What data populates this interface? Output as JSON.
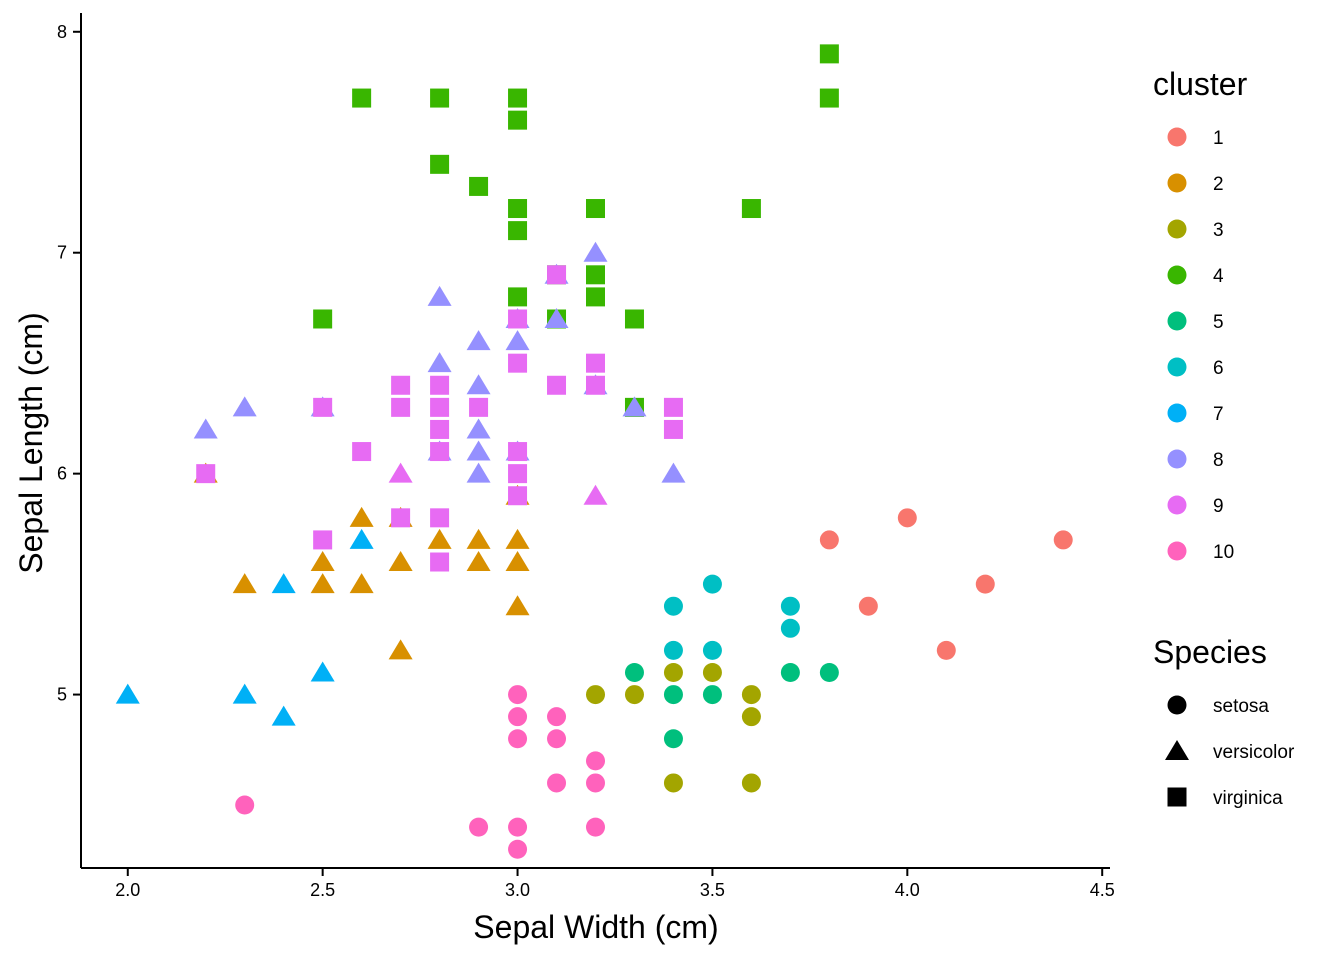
{
  "chart_data": {
    "type": "scatter",
    "title": "",
    "xlabel": "Sepal Width (cm)",
    "ylabel": "Sepal Length (cm)",
    "xlim": [
      1.88,
      4.52
    ],
    "ylim": [
      4.215,
      8.085
    ],
    "xticks": [
      2.0,
      2.5,
      3.0,
      3.5,
      4.0,
      4.5
    ],
    "xtick_labels": [
      "2.0",
      "2.5",
      "3.0",
      "3.5",
      "4.0",
      "4.5"
    ],
    "yticks": [
      5,
      6,
      7,
      8
    ],
    "ytick_labels": [
      "5",
      "6",
      "7",
      "8"
    ],
    "grid": false,
    "legend_position": "right",
    "color_legend": {
      "title": "cluster",
      "entries": [
        {
          "label": "1",
          "color": "#F8766D"
        },
        {
          "label": "2",
          "color": "#D89000"
        },
        {
          "label": "3",
          "color": "#A3A500"
        },
        {
          "label": "4",
          "color": "#39B600"
        },
        {
          "label": "5",
          "color": "#00BF7D"
        },
        {
          "label": "6",
          "color": "#00BFC4"
        },
        {
          "label": "7",
          "color": "#00B0F6"
        },
        {
          "label": "8",
          "color": "#9590FF"
        },
        {
          "label": "9",
          "color": "#E76BF3"
        },
        {
          "label": "10",
          "color": "#FF62BC"
        }
      ]
    },
    "shape_legend": {
      "title": "Species",
      "entries": [
        {
          "label": "setosa",
          "shape": "circle"
        },
        {
          "label": "versicolor",
          "shape": "triangle"
        },
        {
          "label": "virginica",
          "shape": "square"
        }
      ]
    },
    "series": [
      {
        "name": "cluster 1 / setosa",
        "cluster": "1",
        "species": "setosa",
        "points": [
          [
            3.8,
            5.7
          ],
          [
            4.0,
            5.8
          ],
          [
            4.4,
            5.7
          ],
          [
            4.2,
            5.5
          ],
          [
            3.9,
            5.4
          ],
          [
            4.1,
            5.2
          ]
        ]
      },
      {
        "name": "cluster 2 / versicolor",
        "cluster": "2",
        "species": "versicolor",
        "points": [
          [
            2.2,
            6.0
          ],
          [
            2.3,
            5.5
          ],
          [
            2.5,
            5.6
          ],
          [
            2.5,
            5.5
          ],
          [
            2.6,
            5.8
          ],
          [
            2.6,
            5.5
          ],
          [
            2.7,
            5.8
          ],
          [
            2.7,
            5.6
          ],
          [
            2.7,
            5.2
          ],
          [
            2.8,
            5.7
          ],
          [
            2.9,
            5.7
          ],
          [
            2.9,
            5.6
          ],
          [
            3.0,
            5.7
          ],
          [
            3.0,
            5.6
          ],
          [
            3.0,
            5.4
          ],
          [
            3.0,
            5.9
          ]
        ]
      },
      {
        "name": "cluster 3 / setosa",
        "cluster": "3",
        "species": "setosa",
        "points": [
          [
            3.2,
            5.0
          ],
          [
            3.3,
            5.0
          ],
          [
            3.4,
            5.1
          ],
          [
            3.5,
            5.1
          ],
          [
            3.6,
            5.0
          ],
          [
            3.6,
            4.9
          ],
          [
            3.4,
            4.6
          ],
          [
            3.6,
            4.6
          ]
        ]
      },
      {
        "name": "cluster 4 / virginica",
        "cluster": "4",
        "species": "virginica",
        "points": [
          [
            2.6,
            7.7
          ],
          [
            2.8,
            7.7
          ],
          [
            3.0,
            7.7
          ],
          [
            3.0,
            7.6
          ],
          [
            2.8,
            7.4
          ],
          [
            2.9,
            7.3
          ],
          [
            3.0,
            7.2
          ],
          [
            3.0,
            7.1
          ],
          [
            3.2,
            7.2
          ],
          [
            3.6,
            7.2
          ],
          [
            3.8,
            7.9
          ],
          [
            3.8,
            7.7
          ],
          [
            3.2,
            6.9
          ],
          [
            3.1,
            6.9
          ],
          [
            3.2,
            6.8
          ],
          [
            3.0,
            6.8
          ],
          [
            2.5,
            6.7
          ],
          [
            3.1,
            6.7
          ],
          [
            3.3,
            6.7
          ],
          [
            3.3,
            6.3
          ]
        ]
      },
      {
        "name": "cluster 5 / setosa",
        "cluster": "5",
        "species": "setosa",
        "points": [
          [
            3.3,
            5.1
          ],
          [
            3.4,
            5.0
          ],
          [
            3.5,
            5.0
          ],
          [
            3.7,
            5.1
          ],
          [
            3.8,
            5.1
          ],
          [
            3.4,
            4.8
          ]
        ]
      },
      {
        "name": "cluster 6 / setosa",
        "cluster": "6",
        "species": "setosa",
        "points": [
          [
            3.4,
            5.4
          ],
          [
            3.5,
            5.5
          ],
          [
            3.4,
            5.2
          ],
          [
            3.5,
            5.2
          ],
          [
            3.7,
            5.4
          ],
          [
            3.7,
            5.3
          ]
        ]
      },
      {
        "name": "cluster 7 / versicolor",
        "cluster": "7",
        "species": "versicolor",
        "points": [
          [
            2.0,
            5.0
          ],
          [
            2.3,
            5.0
          ],
          [
            2.4,
            4.9
          ],
          [
            2.4,
            5.5
          ],
          [
            2.5,
            5.1
          ],
          [
            2.6,
            5.7
          ]
        ]
      },
      {
        "name": "cluster 8 / versicolor",
        "cluster": "8",
        "species": "versicolor",
        "points": [
          [
            2.2,
            6.2
          ],
          [
            2.3,
            6.3
          ],
          [
            2.5,
            6.3
          ],
          [
            2.8,
            6.8
          ],
          [
            2.8,
            6.5
          ],
          [
            2.8,
            6.1
          ],
          [
            2.9,
            6.6
          ],
          [
            2.9,
            6.4
          ],
          [
            2.9,
            6.2
          ],
          [
            2.9,
            6.1
          ],
          [
            2.9,
            6.0
          ],
          [
            3.0,
            6.7
          ],
          [
            3.0,
            6.6
          ],
          [
            3.0,
            6.1
          ],
          [
            3.1,
            6.9
          ],
          [
            3.1,
            6.7
          ],
          [
            3.2,
            7.0
          ],
          [
            3.2,
            6.4
          ],
          [
            3.3,
            6.3
          ],
          [
            3.4,
            6.0
          ]
        ]
      },
      {
        "name": "cluster 9 / versicolor",
        "cluster": "9",
        "species": "versicolor",
        "points": [
          [
            2.7,
            6.0
          ],
          [
            3.2,
            5.9
          ]
        ]
      },
      {
        "name": "cluster 9 / virginica",
        "cluster": "9",
        "species": "virginica",
        "points": [
          [
            2.2,
            6.0
          ],
          [
            2.5,
            6.3
          ],
          [
            2.5,
            5.7
          ],
          [
            2.6,
            6.1
          ],
          [
            2.7,
            6.4
          ],
          [
            2.7,
            6.3
          ],
          [
            2.7,
            5.8
          ],
          [
            2.8,
            6.4
          ],
          [
            2.8,
            6.3
          ],
          [
            2.8,
            6.2
          ],
          [
            2.8,
            6.1
          ],
          [
            2.8,
            5.8
          ],
          [
            2.8,
            5.6
          ],
          [
            2.9,
            6.3
          ],
          [
            3.0,
            6.7
          ],
          [
            3.0,
            6.5
          ],
          [
            3.0,
            6.1
          ],
          [
            3.0,
            6.0
          ],
          [
            3.0,
            5.9
          ],
          [
            3.1,
            6.9
          ],
          [
            3.1,
            6.4
          ],
          [
            3.2,
            6.5
          ],
          [
            3.2,
            6.4
          ],
          [
            3.4,
            6.3
          ],
          [
            3.4,
            6.2
          ]
        ]
      },
      {
        "name": "cluster 10 / setosa",
        "cluster": "10",
        "species": "setosa",
        "points": [
          [
            2.3,
            4.5
          ],
          [
            2.9,
            4.4
          ],
          [
            3.0,
            5.0
          ],
          [
            3.0,
            4.9
          ],
          [
            3.0,
            4.8
          ],
          [
            3.0,
            4.4
          ],
          [
            3.0,
            4.3
          ],
          [
            3.1,
            4.9
          ],
          [
            3.1,
            4.8
          ],
          [
            3.1,
            4.6
          ],
          [
            3.2,
            4.7
          ],
          [
            3.2,
            4.6
          ],
          [
            3.2,
            4.4
          ]
        ]
      }
    ]
  }
}
